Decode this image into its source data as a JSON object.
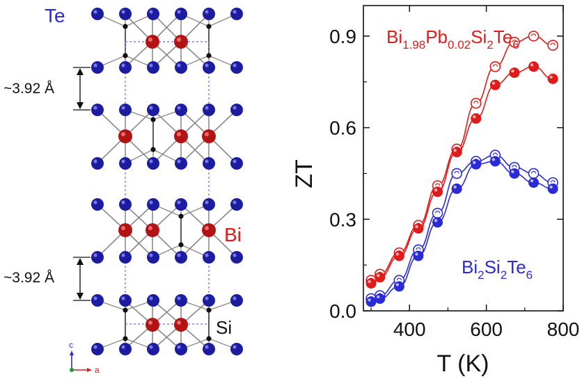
{
  "structure": {
    "label_te": "Te",
    "label_bi": "Bi",
    "label_si": "Si",
    "layer_distance_top": "~3.92 Å",
    "layer_distance_bottom": "~3.92 Å",
    "axis_c": "c",
    "axis_a": "a",
    "colors": {
      "te": "#1c1c9e",
      "bi": "#b01414",
      "si": "#111111",
      "bond": "#8a8a8a",
      "dashed": "#6a6ae8"
    }
  },
  "chart_data": {
    "type": "line",
    "xlabel": "T (K)",
    "ylabel": "ZT",
    "xlim": [
      280,
      800
    ],
    "ylim": [
      0,
      1.0
    ],
    "xticks": [
      400,
      600,
      800
    ],
    "yticks": [
      0.0,
      0.3,
      0.6,
      0.9
    ],
    "xtick_labels": [
      "400",
      "600",
      "800"
    ],
    "ytick_labels": [
      "0.0",
      "0.3",
      "0.6",
      "0.9"
    ],
    "grid": false,
    "series": [
      {
        "group": "Bi1.98Pb0.02Si2Te6",
        "style": "open",
        "color": "#e01b1b",
        "x": [
          300,
          323,
          373,
          423,
          473,
          523,
          573,
          623,
          673,
          723,
          773
        ],
        "y": [
          0.1,
          0.12,
          0.19,
          0.28,
          0.41,
          0.53,
          0.68,
          0.8,
          0.88,
          0.9,
          0.87
        ]
      },
      {
        "group": "Bi1.98Pb0.02Si2Te6",
        "style": "filled",
        "color": "#e01b1b",
        "x": [
          300,
          323,
          373,
          423,
          473,
          523,
          573,
          623,
          673,
          723,
          773
        ],
        "y": [
          0.09,
          0.11,
          0.18,
          0.27,
          0.39,
          0.52,
          0.63,
          0.74,
          0.78,
          0.8,
          0.76
        ]
      },
      {
        "group": "Bi2Si2Te6",
        "style": "open",
        "color": "#2b2bd6",
        "x": [
          300,
          323,
          373,
          423,
          473,
          523,
          573,
          623,
          673,
          723,
          773
        ],
        "y": [
          0.04,
          0.05,
          0.1,
          0.2,
          0.32,
          0.45,
          0.49,
          0.51,
          0.47,
          0.45,
          0.42
        ]
      },
      {
        "group": "Bi2Si2Te6",
        "style": "filled",
        "color": "#2b2bd6",
        "x": [
          300,
          323,
          373,
          423,
          473,
          523,
          573,
          623,
          673,
          723,
          773
        ],
        "y": [
          0.03,
          0.04,
          0.08,
          0.18,
          0.29,
          0.4,
          0.48,
          0.49,
          0.45,
          0.42,
          0.4
        ]
      }
    ],
    "legend_labels": [
      {
        "base": "Bi",
        "sub1": "1.98",
        "mid": "Pb",
        "sub2": "0.02",
        "mid2": "Si",
        "sub3": "2",
        "end": "Te",
        "sub4": "6",
        "color": "#e01b1b"
      },
      {
        "base": "Bi",
        "sub1": "2",
        "mid": "Si",
        "sub2": "2",
        "end": "Te",
        "sub3": "6",
        "color": "#2b2bd6"
      }
    ]
  }
}
